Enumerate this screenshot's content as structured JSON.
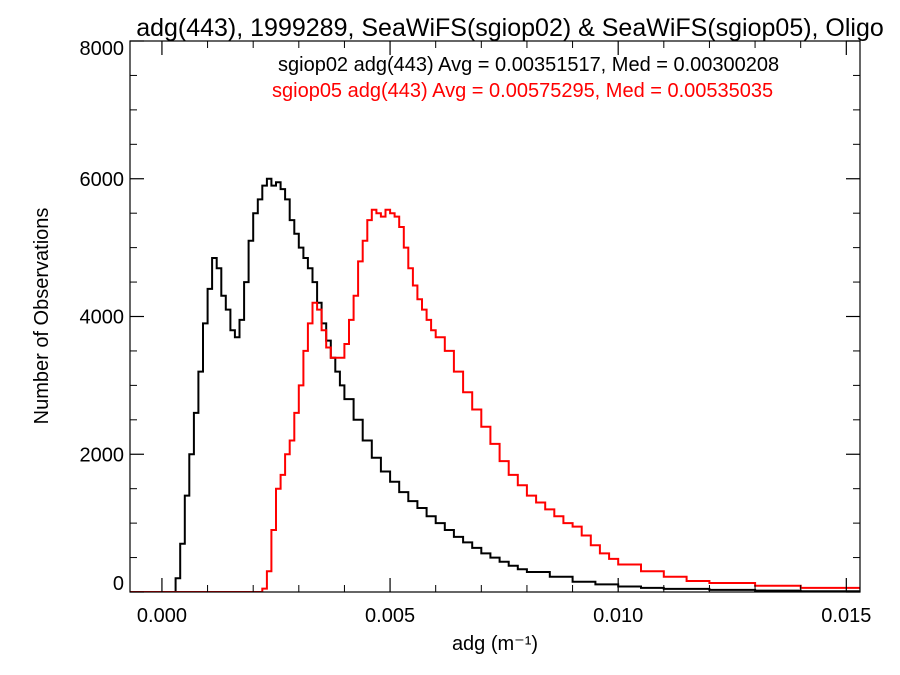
{
  "chart_data": {
    "type": "line",
    "title": "adg(443), 1999289, SeaWiFS(sgiop02) & SeaWiFS(sgiop05), Oligo",
    "xlabel": "adg (m⁻¹)",
    "ylabel": "Number of Observations",
    "xlim": [
      -0.0007,
      0.0153
    ],
    "ylim": [
      0,
      8000
    ],
    "x_ticks": [
      0.0,
      0.005,
      0.01,
      0.015
    ],
    "x_tick_labels": [
      "0.000",
      "0.005",
      "0.010",
      "0.015"
    ],
    "y_ticks": [
      0,
      2000,
      4000,
      6000,
      8000
    ],
    "y_tick_labels": [
      "0",
      "2000",
      "4000",
      "6000",
      "8000"
    ],
    "grid": false,
    "legend_position": "top-right",
    "series": [
      {
        "name": "sgiop02 adg(443) Avg = 0.00351517, Med = 0.00300208",
        "color": "#000000",
        "x": [
          -0.0007,
          0.0002,
          0.0003,
          0.0004,
          0.0005,
          0.0006,
          0.0007,
          0.0008,
          0.0009,
          0.001,
          0.0011,
          0.0012,
          0.0013,
          0.0014,
          0.0015,
          0.0016,
          0.0017,
          0.0018,
          0.0019,
          0.002,
          0.0021,
          0.0022,
          0.0023,
          0.0024,
          0.0025,
          0.0026,
          0.0027,
          0.0028,
          0.0029,
          0.003,
          0.0031,
          0.0032,
          0.0033,
          0.0034,
          0.0035,
          0.0036,
          0.0037,
          0.0038,
          0.0039,
          0.004,
          0.0042,
          0.0044,
          0.0046,
          0.0048,
          0.005,
          0.0052,
          0.0054,
          0.0056,
          0.0058,
          0.006,
          0.0062,
          0.0064,
          0.0066,
          0.0068,
          0.007,
          0.0072,
          0.0074,
          0.0076,
          0.0078,
          0.008,
          0.0085,
          0.009,
          0.0095,
          0.01,
          0.0105,
          0.011,
          0.012,
          0.013,
          0.014,
          0.0153
        ],
        "y": [
          0,
          0,
          200,
          700,
          1400,
          2000,
          2600,
          3200,
          3900,
          4400,
          4850,
          4700,
          4300,
          4100,
          3800,
          3700,
          3950,
          4500,
          5100,
          5500,
          5700,
          5900,
          6000,
          5900,
          5950,
          5850,
          5700,
          5400,
          5200,
          5000,
          4850,
          4700,
          4500,
          4200,
          3900,
          3650,
          3400,
          3200,
          3000,
          2800,
          2500,
          2200,
          1950,
          1750,
          1600,
          1450,
          1320,
          1220,
          1100,
          1000,
          900,
          800,
          720,
          640,
          560,
          500,
          440,
          380,
          330,
          290,
          220,
          150,
          110,
          80,
          60,
          45,
          30,
          20,
          10,
          5
        ]
      },
      {
        "name": "sgiop05 adg(443) Avg = 0.00575295, Med = 0.00535035",
        "color": "#ff0000",
        "x": [
          -0.0007,
          0.002,
          0.0022,
          0.0023,
          0.0024,
          0.0025,
          0.0026,
          0.0027,
          0.0028,
          0.0029,
          0.003,
          0.0031,
          0.0032,
          0.0033,
          0.0034,
          0.0035,
          0.0036,
          0.0037,
          0.0038,
          0.0039,
          0.004,
          0.0041,
          0.0042,
          0.0043,
          0.0044,
          0.0045,
          0.0046,
          0.0047,
          0.0048,
          0.0049,
          0.005,
          0.0051,
          0.0052,
          0.0053,
          0.0054,
          0.0055,
          0.0056,
          0.0057,
          0.0058,
          0.0059,
          0.006,
          0.0062,
          0.0064,
          0.0066,
          0.0068,
          0.007,
          0.0072,
          0.0074,
          0.0076,
          0.0078,
          0.008,
          0.0082,
          0.0084,
          0.0086,
          0.0088,
          0.009,
          0.0092,
          0.0094,
          0.0096,
          0.0098,
          0.01,
          0.0105,
          0.011,
          0.0115,
          0.012,
          0.013,
          0.014,
          0.0153
        ],
        "y": [
          0,
          0,
          50,
          300,
          900,
          1500,
          1700,
          2000,
          2200,
          2600,
          3000,
          3500,
          3900,
          4200,
          4100,
          3800,
          3550,
          3400,
          3400,
          3400,
          3600,
          3950,
          4300,
          4800,
          5100,
          5400,
          5550,
          5500,
          5450,
          5550,
          5500,
          5450,
          5300,
          5000,
          4700,
          4450,
          4250,
          4100,
          3950,
          3800,
          3700,
          3500,
          3200,
          2900,
          2650,
          2400,
          2150,
          1900,
          1700,
          1550,
          1400,
          1300,
          1200,
          1100,
          1000,
          950,
          820,
          680,
          560,
          480,
          400,
          300,
          220,
          160,
          130,
          90,
          60,
          40
        ]
      }
    ]
  }
}
